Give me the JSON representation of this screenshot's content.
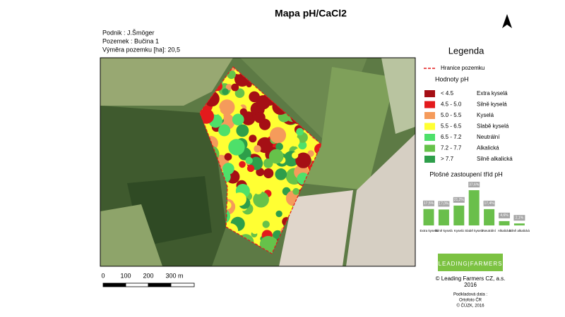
{
  "header": {
    "title": "Mapa pH/CaCl2"
  },
  "info": [
    "Podnik : J.Šmöger",
    "Pozemek : Bučina 1",
    "Výměra pozemku [ha]: 20,5"
  ],
  "scale_bar": {
    "labels": [
      "0",
      "100",
      "200",
      "300 m"
    ]
  },
  "legend": {
    "title": "Legenda",
    "boundary": "Hranice pozemku",
    "subtitle": "Hodnoty pH",
    "classes": [
      {
        "range": "< 4.5",
        "name": "Extra kyselá",
        "color": "#a50f15"
      },
      {
        "range": "4.5 - 5.0",
        "name": "Silně kyselá",
        "color": "#e31a1c"
      },
      {
        "range": "5.0 - 5.5",
        "name": "Kyselá",
        "color": "#f59b5b"
      },
      {
        "range": "5.5 - 6.5",
        "name": "Slabě kyselá",
        "color": "#ffff33"
      },
      {
        "range": "6.5 - 7.2",
        "name": "Neutrální",
        "color": "#4ee06a"
      },
      {
        "range": "7.2 - 7.7",
        "name": "Alkalická",
        "color": "#66c24a"
      },
      {
        "range": "> 7.7",
        "name": "Silně alkalická",
        "color": "#2e9e4a"
      }
    ]
  },
  "chart_data": {
    "type": "bar",
    "title": "Plošné zastoupení tříd pH",
    "categories": [
      "Extra kyselá",
      "Silně kyselá",
      "Kyselá",
      "Slabě kyselá",
      "Neutrální",
      "Alkalická",
      "Silně alkalická"
    ],
    "values": [
      17.5,
      17.0,
      21.2,
      37.6,
      17.4,
      4.6,
      2.1
    ],
    "value_labels": [
      "17,5%",
      "17,0%",
      "21,2%",
      "37,6%",
      "17,4%",
      "4,6%",
      "2,1%"
    ],
    "color": "#6abf4b"
  },
  "logo": "LEADING|FARMERS",
  "credits": [
    "© Leading Farmers CZ, a.s.",
    "2016",
    "Podkladová data :",
    "Ortofoto ČR",
    "© ČÚZK, 2016"
  ]
}
